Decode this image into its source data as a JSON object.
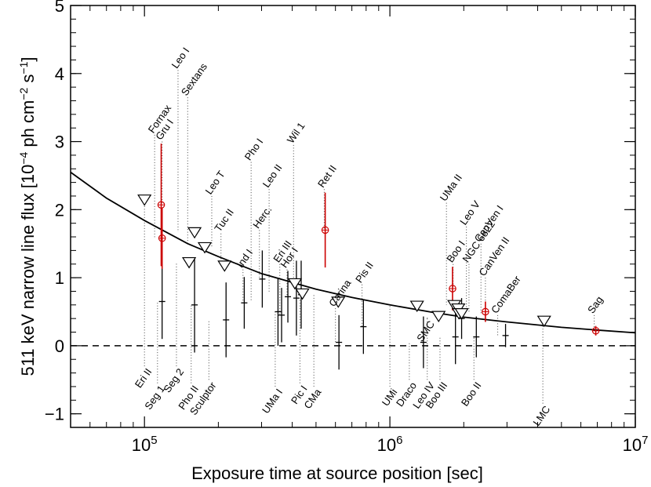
{
  "chart_data": {
    "type": "scatter",
    "x_scale": "log",
    "xlim": [
      50000,
      10000000
    ],
    "ylim": [
      -1.2,
      5
    ],
    "xlabel": "Exposure time at source position [sec]",
    "ylabel": "511 keV narrow line flux [10^-4 ph cm^-2 s^-1]",
    "ylabel_parts": [
      "511 keV narrow line flux [10",
      "−4",
      " ph cm",
      "−2",
      " s",
      "−1",
      "]"
    ],
    "x_ticks": [
      {
        "value": 100000,
        "base": "10",
        "exp": "5"
      },
      {
        "value": 1000000,
        "base": "10",
        "exp": "6"
      },
      {
        "value": 10000000,
        "base": "10",
        "exp": "7"
      }
    ],
    "y_ticks": [
      -1,
      0,
      1,
      2,
      3,
      4,
      5
    ],
    "y_tick_labels": [
      "−1",
      "0",
      "1",
      "2",
      "3",
      "4",
      "5"
    ],
    "grid": false,
    "zero_line": {
      "y": 0,
      "style": "dashed"
    },
    "limit_curve": {
      "points": [
        {
          "x": 50000,
          "y": 2.55
        },
        {
          "x": 70000,
          "y": 2.17
        },
        {
          "x": 100000,
          "y": 1.84
        },
        {
          "x": 150000,
          "y": 1.5
        },
        {
          "x": 200000,
          "y": 1.31
        },
        {
          "x": 300000,
          "y": 1.06
        },
        {
          "x": 500000,
          "y": 0.83
        },
        {
          "x": 700000,
          "y": 0.71
        },
        {
          "x": 1000000,
          "y": 0.6
        },
        {
          "x": 1500000,
          "y": 0.49
        },
        {
          "x": 2000000,
          "y": 0.42
        },
        {
          "x": 3000000,
          "y": 0.35
        },
        {
          "x": 5000000,
          "y": 0.27
        },
        {
          "x": 7000000,
          "y": 0.23
        },
        {
          "x": 10000000,
          "y": 0.19
        }
      ]
    },
    "series": [
      {
        "points": [
          {
            "name": "Seg 1",
            "x": 118000,
            "y": 0.65,
            "err": 0.55
          },
          {
            "name": "Pho II",
            "x": 160000,
            "y": 0.6,
            "err": 0.7
          },
          {
            "name": "Sculptor",
            "x": 215000,
            "y": 0.38,
            "err": 0.55
          },
          {
            "name": "Ind I",
            "x": 255000,
            "y": 0.63,
            "err": 0.38
          },
          {
            "name": "Herc.",
            "x": 302000,
            "y": 0.98,
            "err": 0.42
          },
          {
            "name": "UMa I",
            "x": 350000,
            "y": 0.5,
            "err": 0.5
          },
          {
            "name": "Eri III",
            "x": 362000,
            "y": 0.45,
            "err": 0.4
          },
          {
            "name": "Hor I",
            "x": 384000,
            "y": 0.72,
            "err": 0.38
          },
          {
            "name": "Pic I",
            "x": 416000,
            "y": 0.7,
            "err": 0.55
          },
          {
            "name": "CMa",
            "x": 435000,
            "y": 0.75,
            "err": 0.5
          },
          {
            "name": "Carina",
            "x": 620000,
            "y": 0.05,
            "err": 0.4
          },
          {
            "name": "Pis II",
            "x": 780000,
            "y": 0.28,
            "err": 0.4
          },
          {
            "name": "Draco",
            "x": 1370000,
            "y": 0.05,
            "err": 0.38
          },
          {
            "name": "Boo III",
            "x": 1850000,
            "y": 0.13,
            "err": 0.4
          },
          {
            "name": "Leo IV",
            "x": 1960000,
            "y": 0.4,
            "err": 0.3
          },
          {
            "name": "Boo II",
            "x": 2250000,
            "y": 0.13,
            "err": 0.3
          },
          {
            "name": "ComaBer",
            "x": 2960000,
            "y": 0.15,
            "err": 0.17
          }
        ]
      },
      {
        "points": [
          {
            "name": "Gru I",
            "x": 117000,
            "y": 2.07,
            "err": 0.9
          },
          {
            "name": "Fornax",
            "x": 118000,
            "y": 1.58,
            "err": 0.45
          },
          {
            "name": "Ret II",
            "x": 545000,
            "y": 1.7,
            "err": 0.55
          },
          {
            "name": "Boo I",
            "x": 1800000,
            "y": 0.84,
            "err": 0.32
          },
          {
            "name": "CanVen II",
            "x": 2450000,
            "y": 0.5,
            "err": 0.15
          },
          {
            "name": "Sag",
            "x": 6900000,
            "y": 0.22,
            "err": 0.07
          }
        ]
      },
      {
        "points": [
          {
            "name": "Eri II",
            "x": 100000,
            "y": 2.15
          },
          {
            "name": "Leo I",
            "x": 160000,
            "y": 1.67
          },
          {
            "name": "Seg 2",
            "x": 152000,
            "y": 1.23
          },
          {
            "name": "Leo T",
            "x": 176000,
            "y": 1.45
          },
          {
            "name": "Tuc II",
            "x": 212000,
            "y": 1.18
          },
          {
            "name": "Wil 1",
            "x": 410000,
            "y": 0.92
          },
          {
            "name": "Leo II",
            "x": 440000,
            "y": 0.77
          },
          {
            "name": "Pho I",
            "x": 616000,
            "y": 0.65
          },
          {
            "name": "UMi",
            "x": 1290000,
            "y": 0.59
          },
          {
            "name": "SMC",
            "x": 1580000,
            "y": 0.44
          },
          {
            "name": "UMa II",
            "x": 1830000,
            "y": 0.6
          },
          {
            "name": "Leo V",
            "x": 1900000,
            "y": 0.55
          },
          {
            "name": "NGC 6822",
            "x": 1910000,
            "y": 0.48
          },
          {
            "name": "CanVen I",
            "x": 1960000,
            "y": 0.48
          },
          {
            "name": "LMC",
            "x": 4250000,
            "y": 0.37
          }
        ]
      }
    ],
    "labels": [
      {
        "text": "Eri II",
        "x": 100000,
        "y": -0.3,
        "from_y": 2.15,
        "angle": -55
      },
      {
        "text": "Fornax",
        "x": 110000,
        "y": 3.1,
        "from_y": 1.58,
        "angle": -55
      },
      {
        "text": "Gru I",
        "x": 118000,
        "y": 3.0,
        "from_y": 2.07,
        "angle": -55
      },
      {
        "text": "Seg 1",
        "x": 113000,
        "y": -0.55,
        "from_y": 0.65,
        "angle": -55
      },
      {
        "text": "Seg 2",
        "x": 135000,
        "y": -0.3,
        "from_y": 1.23,
        "angle": -55
      },
      {
        "text": "Leo I",
        "x": 137000,
        "y": 4.05,
        "from_y": 1.67,
        "angle": -55
      },
      {
        "text": "Pho II",
        "x": 155000,
        "y": -0.55,
        "from_y": 0.6,
        "angle": -55
      },
      {
        "text": "Sextans",
        "x": 150000,
        "y": 3.65,
        "from_y": 1.5,
        "angle": -55
      },
      {
        "text": "Sculptor",
        "x": 183000,
        "y": -0.5,
        "from_y": 0.38,
        "angle": -55
      },
      {
        "text": "Leo T",
        "x": 188000,
        "y": 2.2,
        "from_y": 1.45,
        "angle": -55
      },
      {
        "text": "Tuc II",
        "x": 205000,
        "y": 1.65,
        "from_y": 1.18,
        "angle": -55
      },
      {
        "text": "Ind I",
        "x": 252000,
        "y": 1.12,
        "from_y": 0.63,
        "angle": -55
      },
      {
        "text": "Pho I",
        "x": 272000,
        "y": 2.7,
        "from_y": 0.65,
        "angle": -55
      },
      {
        "text": "Herc.",
        "x": 294000,
        "y": 1.7,
        "from_y": 0.98,
        "angle": -55
      },
      {
        "text": "Leo II",
        "x": 322000,
        "y": 2.3,
        "from_y": 0.77,
        "angle": -55
      },
      {
        "text": "UMa I",
        "x": 341000,
        "y": -0.6,
        "from_y": 0.5,
        "angle": -55
      },
      {
        "text": "Eri III",
        "x": 356000,
        "y": 1.2,
        "from_y": 0.45,
        "angle": -55
      },
      {
        "text": "Hor I",
        "x": 381000,
        "y": 1.12,
        "from_y": 0.72,
        "angle": -55
      },
      {
        "text": "Wil 1",
        "x": 405000,
        "y": 2.95,
        "from_y": 0.92,
        "angle": -55
      },
      {
        "text": "Pic I",
        "x": 430000,
        "y": -0.55,
        "from_y": 0.7,
        "angle": -55
      },
      {
        "text": "CMa",
        "x": 490000,
        "y": -0.6,
        "from_y": 0.75,
        "angle": -55
      },
      {
        "text": "Ret II",
        "x": 540000,
        "y": 2.3,
        "from_y": 1.7,
        "angle": -55
      },
      {
        "text": "Carina",
        "x": 600000,
        "y": 0.55,
        "from_y": 0.05,
        "angle": -55
      },
      {
        "text": "Pis II",
        "x": 770000,
        "y": 0.9,
        "from_y": 0.28,
        "angle": -55
      },
      {
        "text": "UMi",
        "x": 1000000,
        "y": -0.6,
        "from_y": 0.59,
        "angle": -55
      },
      {
        "text": "SMC",
        "x": 1420000,
        "y": 0.4,
        "from_y": 0.44,
        "angle": -55
      },
      {
        "text": "Draco",
        "x": 1200000,
        "y": -0.5,
        "from_y": 0.05,
        "angle": -55
      },
      {
        "text": "Leo IV",
        "x": 1420000,
        "y": -0.5,
        "from_y": 0.4,
        "angle": -55
      },
      {
        "text": "Boo III",
        "x": 1600000,
        "y": -0.5,
        "from_y": 0.13,
        "angle": -55
      },
      {
        "text": "UMa II",
        "x": 1700000,
        "y": 2.1,
        "from_y": 0.6,
        "angle": -55
      },
      {
        "text": "Boo I",
        "x": 1810000,
        "y": 1.2,
        "from_y": 0.84,
        "angle": -55
      },
      {
        "text": "Leo V",
        "x": 2050000,
        "y": 1.75,
        "from_y": 0.55,
        "angle": -55
      },
      {
        "text": "NGC 6822",
        "x": 2100000,
        "y": 1.2,
        "from_y": 0.48,
        "angle": -55
      },
      {
        "text": "CanVen I",
        "x": 2350000,
        "y": 1.5,
        "from_y": 0.48,
        "angle": -55
      },
      {
        "text": "CanVen II",
        "x": 2450000,
        "y": 1.0,
        "from_y": 0.5,
        "angle": -55
      },
      {
        "text": "Boo II",
        "x": 2200000,
        "y": -0.5,
        "from_y": 0.13,
        "angle": -55
      },
      {
        "text": "ComaBer",
        "x": 2750000,
        "y": 0.45,
        "from_y": 0.15,
        "angle": -55
      },
      {
        "text": "LMC",
        "x": 4200000,
        "y": -0.85,
        "from_y": 0.37,
        "angle": -55
      },
      {
        "text": "Sag",
        "x": 6800000,
        "y": 0.45,
        "from_y": 0.22,
        "angle": -55
      }
    ],
    "colors": {
      "axis": "#000000",
      "detection": "#000000",
      "highlight": "#cc0000",
      "upper_limit": "#000000",
      "curve": "#000000",
      "leader": "#444444"
    }
  }
}
